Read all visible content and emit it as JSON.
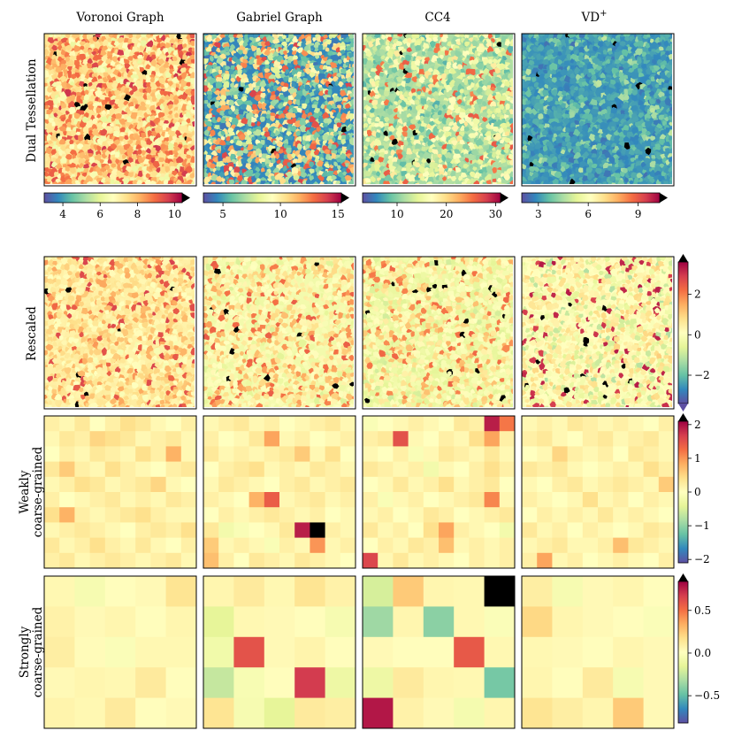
{
  "figure": {
    "column_titles": [
      "Voronoi Graph",
      "Gabriel Graph",
      "CC4",
      "VD"
    ],
    "vd_superscript": "+",
    "row_labels": [
      [
        "Dual Tessellation"
      ],
      [
        "Rescaled"
      ],
      [
        "Weakly",
        "coarse-grained"
      ],
      [
        "Strongly",
        "coarse-grained"
      ]
    ],
    "colormap": "Spectral_r",
    "colormap_stops": [
      "#5e4fa2",
      "#3288bd",
      "#66c2a5",
      "#abdda4",
      "#e6f598",
      "#ffffbf",
      "#fee08b",
      "#fdae61",
      "#f46d43",
      "#d53e4f",
      "#9e0142"
    ],
    "over_color": "#000000"
  },
  "chart_data": [
    {
      "type": "heatmap",
      "row": "Dual Tessellation",
      "column": "Voronoi Graph",
      "colorbar": {
        "orientation": "horizontal",
        "range": [
          3,
          10.4
        ],
        "ticks": [
          4,
          6,
          8,
          10
        ],
        "tick_labels": [
          "4",
          "6",
          "8",
          "10"
        ],
        "extend": "max"
      },
      "texture": "random tessellation of cells, mostly pale yellow/orange, few black clusters",
      "values": null
    },
    {
      "type": "heatmap",
      "row": "Dual Tessellation",
      "column": "Gabriel Graph",
      "colorbar": {
        "orientation": "horizontal",
        "range": [
          3.3,
          15.3
        ],
        "ticks": [
          5,
          10,
          15
        ],
        "tick_labels": [
          "5",
          "10",
          "15"
        ],
        "extend": "max"
      },
      "texture": "random tessellation, many blue and green cells, black clusters",
      "values": null
    },
    {
      "type": "heatmap",
      "row": "Dual Tessellation",
      "column": "CC4",
      "colorbar": {
        "orientation": "horizontal",
        "range": [
          3,
          31
        ],
        "ticks": [
          10,
          20,
          30
        ],
        "tick_labels": [
          "10",
          "20",
          "30"
        ],
        "extend": "max"
      },
      "texture": "random tessellation, green/blue/yellow with red clusters",
      "values": null
    },
    {
      "type": "heatmap",
      "row": "Dual Tessellation",
      "column": "VD+",
      "colorbar": {
        "orientation": "horizontal",
        "range": [
          2,
          10.3
        ],
        "ticks": [
          3,
          6,
          9
        ],
        "tick_labels": [
          "3",
          "6",
          "9"
        ],
        "extend": "max"
      },
      "texture": "random tessellation, predominantly blue",
      "values": null
    },
    {
      "type": "heatmap",
      "row": "Rescaled",
      "columns": [
        "Voronoi Graph",
        "Gabriel Graph",
        "CC4",
        "VD+"
      ],
      "colorbar": {
        "orientation": "vertical",
        "range": [
          -3.4,
          3.6
        ],
        "ticks": [
          2,
          0,
          -2
        ],
        "tick_labels": [
          "2",
          "0",
          "−2"
        ],
        "extend": "both"
      },
      "values": null
    },
    {
      "type": "heatmap",
      "row": "Weakly coarse-grained",
      "columns": [
        "Voronoi Graph",
        "Gabriel Graph",
        "CC4",
        "VD+"
      ],
      "colorbar": {
        "orientation": "vertical",
        "range": [
          -2.1,
          2.1
        ],
        "ticks": [
          2,
          1,
          0,
          -1,
          -2
        ],
        "tick_labels": [
          "2",
          "1",
          "0",
          "−1",
          "−2"
        ],
        "extend": "max"
      },
      "grid_size": [
        10,
        10
      ],
      "values": [
        [
          [
            0.2,
            0.1,
            0.3,
            0.0,
            0.2,
            0.4,
            0.3,
            0.1,
            0.0,
            0.2
          ],
          [
            0.1,
            0.3,
            0.2,
            0.5,
            0.4,
            0.3,
            0.1,
            0.2,
            0.3,
            0.1
          ],
          [
            0.0,
            0.2,
            0.1,
            0.3,
            0.2,
            0.1,
            0.4,
            0.2,
            0.8,
            0.1
          ],
          [
            0.3,
            0.6,
            0.2,
            0.1,
            0.4,
            0.2,
            0.1,
            0.0,
            0.2,
            0.3
          ],
          [
            0.1,
            0.2,
            0.4,
            0.3,
            0.1,
            0.2,
            0.3,
            0.5,
            0.1,
            0.0
          ],
          [
            0.2,
            0.0,
            0.1,
            0.2,
            0.3,
            0.1,
            0.2,
            0.1,
            0.3,
            0.2
          ],
          [
            0.4,
            0.8,
            0.2,
            0.1,
            0.2,
            0.3,
            0.4,
            0.2,
            0.1,
            0.1
          ],
          [
            0.1,
            0.2,
            0.3,
            0.2,
            0.1,
            0.0,
            0.2,
            0.3,
            0.2,
            0.4
          ],
          [
            0.3,
            0.1,
            0.2,
            0.4,
            0.2,
            0.1,
            0.3,
            0.1,
            0.0,
            0.2
          ],
          [
            0.2,
            0.3,
            0.1,
            0.2,
            0.3,
            0.2,
            0.1,
            0.2,
            0.3,
            0.1
          ]
        ],
        [
          [
            0.1,
            0.2,
            0.3,
            0.1,
            0.2,
            0.0,
            0.1,
            0.2,
            0.3,
            0.1
          ],
          [
            0.2,
            0.0,
            0.1,
            0.3,
            0.9,
            0.1,
            0.2,
            0.0,
            0.1,
            0.2
          ],
          [
            0.3,
            0.1,
            0.2,
            0.1,
            0.2,
            0.3,
            0.6,
            0.1,
            0.4,
            0.0
          ],
          [
            0.0,
            0.2,
            0.3,
            0.4,
            0.1,
            0.2,
            0.1,
            0.3,
            0.2,
            0.1
          ],
          [
            0.1,
            0.3,
            0.2,
            0.1,
            0.0,
            0.2,
            0.3,
            0.1,
            0.2,
            0.3
          ],
          [
            0.2,
            0.1,
            0.0,
            0.8,
            1.4,
            0.1,
            0.2,
            0.3,
            0.1,
            0.2
          ],
          [
            0.0,
            0.2,
            0.1,
            0.2,
            0.3,
            0.2,
            0.1,
            0.2,
            0.0,
            0.1
          ],
          [
            0.3,
            -0.2,
            -0.1,
            0.0,
            0.1,
            0.3,
            1.9,
            2.4,
            0.2,
            0.1
          ],
          [
            0.6,
            0.1,
            0.2,
            0.1,
            -0.1,
            0.2,
            0.1,
            1.0,
            0.1,
            0.2
          ],
          [
            0.7,
            0.2,
            0.0,
            0.3,
            0.2,
            0.1,
            0.3,
            0.2,
            0.1,
            0.0
          ]
        ],
        [
          [
            -0.1,
            0.0,
            0.1,
            0.2,
            0.1,
            0.0,
            0.3,
            0.2,
            1.9,
            1.2
          ],
          [
            0.2,
            0.3,
            1.5,
            0.1,
            0.0,
            0.2,
            0.1,
            0.4,
            0.9,
            0.2
          ],
          [
            0.1,
            0.0,
            0.2,
            -0.1,
            0.1,
            0.3,
            0.2,
            0.1,
            0.3,
            0.1
          ],
          [
            0.3,
            0.2,
            0.1,
            0.2,
            -0.2,
            0.1,
            0.0,
            0.2,
            0.4,
            0.2
          ],
          [
            0.0,
            0.1,
            0.3,
            0.1,
            0.2,
            0.4,
            0.1,
            0.2,
            0.3,
            0.0
          ],
          [
            0.2,
            -0.1,
            0.1,
            0.2,
            0.0,
            0.1,
            0.2,
            0.3,
            1.1,
            0.1
          ],
          [
            0.1,
            0.2,
            0.0,
            0.1,
            0.3,
            0.2,
            0.0,
            0.1,
            0.2,
            0.3
          ],
          [
            0.3,
            0.1,
            0.2,
            0.0,
            0.4,
            0.9,
            0.2,
            0.1,
            0.0,
            -0.2
          ],
          [
            0.0,
            0.2,
            0.1,
            0.3,
            0.2,
            0.7,
            0.1,
            0.2,
            0.1,
            0.2
          ],
          [
            1.6,
            0.1,
            0.3,
            0.1,
            0.2,
            0.1,
            0.0,
            0.2,
            0.1,
            0.2
          ]
        ],
        [
          [
            0.1,
            0.2,
            0.1,
            0.3,
            0.2,
            0.1,
            0.2,
            0.1,
            0.0,
            0.2
          ],
          [
            0.2,
            0.3,
            0.1,
            0.0,
            0.2,
            0.3,
            0.1,
            0.2,
            0.3,
            0.1
          ],
          [
            0.0,
            0.1,
            0.5,
            0.2,
            0.1,
            0.2,
            0.0,
            0.3,
            0.2,
            0.1
          ],
          [
            0.3,
            0.2,
            0.3,
            0.1,
            0.0,
            0.1,
            0.2,
            0.1,
            0.4,
            0.2
          ],
          [
            0.1,
            0.0,
            0.2,
            0.3,
            0.1,
            0.2,
            0.3,
            0.2,
            0.1,
            0.6
          ],
          [
            0.2,
            0.1,
            0.0,
            0.1,
            0.4,
            0.1,
            0.2,
            0.0,
            0.2,
            0.1
          ],
          [
            0.0,
            0.2,
            0.1,
            0.2,
            0.1,
            0.3,
            0.1,
            0.2,
            0.1,
            0.0
          ],
          [
            0.3,
            0.1,
            0.2,
            0.0,
            0.2,
            0.1,
            0.0,
            0.1,
            0.3,
            0.2
          ],
          [
            0.1,
            0.2,
            0.3,
            0.1,
            0.1,
            0.2,
            0.7,
            0.3,
            0.2,
            0.1
          ],
          [
            0.2,
            0.9,
            0.1,
            0.2,
            0.0,
            0.1,
            0.2,
            0.1,
            0.0,
            0.2
          ]
        ]
      ]
    },
    {
      "type": "heatmap",
      "row": "Strongly coarse-grained",
      "columns": [
        "Voronoi Graph",
        "Gabriel Graph",
        "CC4",
        "VD+"
      ],
      "colorbar": {
        "orientation": "vertical",
        "range": [
          -0.82,
          0.84
        ],
        "ticks": [
          0.5,
          0.0,
          -0.5
        ],
        "tick_labels": [
          "0.5",
          "0.0",
          "−0.5"
        ],
        "extend": "max"
      },
      "grid_size": [
        5,
        5
      ],
      "values": [
        [
          [
            0.05,
            -0.05,
            0.02,
            0.04,
            0.15
          ],
          [
            0.08,
            0.04,
            0.06,
            0.02,
            0.06
          ],
          [
            0.1,
            0.03,
            -0.02,
            0.05,
            0.05
          ],
          [
            0.04,
            0.06,
            0.05,
            0.12,
            0.02
          ],
          [
            0.07,
            0.05,
            0.12,
            0.02,
            0.04
          ]
        ],
        [
          [
            0.06,
            0.12,
            0.05,
            0.15,
            0.08
          ],
          [
            -0.15,
            0.05,
            0.04,
            0.02,
            -0.05
          ],
          [
            -0.08,
            0.6,
            0.04,
            0.07,
            0.02
          ],
          [
            -0.25,
            -0.04,
            0.02,
            0.68,
            -0.1
          ],
          [
            0.15,
            -0.05,
            -0.15,
            0.12,
            0.1
          ]
        ],
        [
          [
            -0.2,
            0.25,
            0.06,
            0.05,
            0.95
          ],
          [
            -0.35,
            0.06,
            -0.4,
            0.05,
            -0.02
          ],
          [
            0.04,
            0.02,
            0.02,
            0.58,
            0.05
          ],
          [
            -0.1,
            0.12,
            0.06,
            0.05,
            -0.45
          ],
          [
            0.78,
            0.08,
            0.04,
            -0.06,
            0.06
          ]
        ],
        [
          [
            0.1,
            -0.05,
            0.04,
            0.06,
            0.02
          ],
          [
            0.2,
            0.06,
            0.04,
            0.02,
            -0.02
          ],
          [
            0.05,
            0.04,
            0.02,
            0.06,
            0.04
          ],
          [
            0.06,
            0.02,
            0.12,
            -0.05,
            0.04
          ],
          [
            0.15,
            0.1,
            0.06,
            0.25,
            0.04
          ]
        ]
      ]
    }
  ]
}
